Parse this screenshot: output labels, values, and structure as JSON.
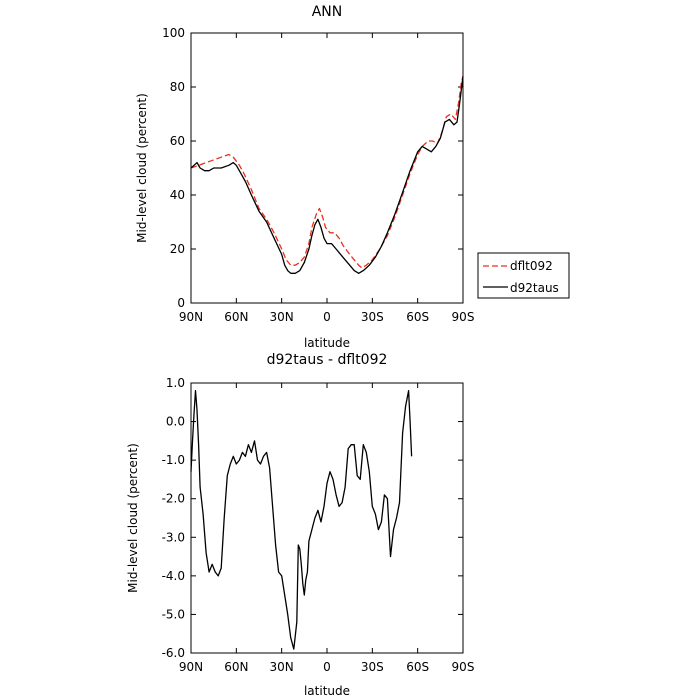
{
  "chart_data": [
    {
      "type": "line",
      "title": "ANN",
      "xlabel": "latitude",
      "ylabel": "Mid-level cloud (percent)",
      "xlim": [
        90,
        -90
      ],
      "ylim": [
        0,
        100
      ],
      "xticks": [
        90,
        60,
        30,
        0,
        -30,
        -60,
        -90
      ],
      "xtick_labels": [
        "90N",
        "60N",
        "30N",
        "0",
        "30S",
        "60S",
        "90S"
      ],
      "yticks": [
        0,
        20,
        40,
        60,
        80,
        100
      ],
      "ytick_labels": [
        "0",
        "20",
        "40",
        "60",
        "80",
        "100"
      ],
      "grid": false,
      "legend": {
        "position": "right-outside",
        "entries": [
          "dflt092",
          "d92taus"
        ]
      },
      "series": [
        {
          "name": "dflt092",
          "color": "#e8301e",
          "dash": "dashed",
          "points": [
            [
              90,
              50
            ],
            [
              85,
              51
            ],
            [
              80,
              52
            ],
            [
              75,
              53
            ],
            [
              70,
              54
            ],
            [
              65,
              55
            ],
            [
              62,
              54
            ],
            [
              58,
              51
            ],
            [
              55,
              48
            ],
            [
              50,
              42
            ],
            [
              45,
              35
            ],
            [
              40,
              31
            ],
            [
              35,
              26
            ],
            [
              30,
              20
            ],
            [
              27,
              16
            ],
            [
              24,
              14
            ],
            [
              21,
              14
            ],
            [
              18,
              15
            ],
            [
              15,
              17
            ],
            [
              12,
              22
            ],
            [
              10,
              28
            ],
            [
              7,
              33
            ],
            [
              5,
              35
            ],
            [
              3,
              32
            ],
            [
              1,
              28
            ],
            [
              -2,
              26
            ],
            [
              -5,
              26
            ],
            [
              -8,
              24
            ],
            [
              -11,
              21
            ],
            [
              -15,
              18
            ],
            [
              -18,
              16
            ],
            [
              -21,
              14
            ],
            [
              -23,
              13
            ],
            [
              -26,
              14
            ],
            [
              -30,
              16
            ],
            [
              -35,
              20
            ],
            [
              -40,
              25
            ],
            [
              -45,
              32
            ],
            [
              -50,
              40
            ],
            [
              -55,
              48
            ],
            [
              -60,
              55
            ],
            [
              -63,
              58
            ],
            [
              -67,
              60
            ],
            [
              -70,
              60
            ],
            [
              -73,
              59
            ],
            [
              -76,
              63
            ],
            [
              -79,
              69
            ],
            [
              -82,
              70
            ],
            [
              -85,
              68
            ],
            [
              -87,
              74
            ],
            [
              -89,
              82
            ],
            [
              -90,
              84
            ]
          ]
        },
        {
          "name": "d92taus",
          "color": "#000000",
          "dash": "solid",
          "points": [
            [
              90,
              50
            ],
            [
              88,
              51
            ],
            [
              86,
              52
            ],
            [
              84,
              50
            ],
            [
              81,
              49
            ],
            [
              78,
              49
            ],
            [
              75,
              50
            ],
            [
              70,
              50
            ],
            [
              65,
              51
            ],
            [
              62,
              52
            ],
            [
              60,
              51
            ],
            [
              57,
              48
            ],
            [
              54,
              45
            ],
            [
              50,
              40
            ],
            [
              45,
              34
            ],
            [
              40,
              30
            ],
            [
              35,
              24
            ],
            [
              30,
              18
            ],
            [
              28,
              14
            ],
            [
              26,
              12
            ],
            [
              24,
              11
            ],
            [
              21,
              11
            ],
            [
              18,
              12
            ],
            [
              15,
              15
            ],
            [
              12,
              20
            ],
            [
              10,
              25
            ],
            [
              8,
              29
            ],
            [
              6,
              31
            ],
            [
              4,
              28
            ],
            [
              2,
              24
            ],
            [
              0,
              22
            ],
            [
              -3,
              22
            ],
            [
              -6,
              20
            ],
            [
              -9,
              18
            ],
            [
              -12,
              16
            ],
            [
              -15,
              14
            ],
            [
              -18,
              12
            ],
            [
              -21,
              11
            ],
            [
              -24,
              12
            ],
            [
              -28,
              14
            ],
            [
              -32,
              17
            ],
            [
              -36,
              21
            ],
            [
              -40,
              26
            ],
            [
              -45,
              33
            ],
            [
              -50,
              41
            ],
            [
              -55,
              49
            ],
            [
              -60,
              56
            ],
            [
              -63,
              58
            ],
            [
              -66,
              57
            ],
            [
              -69,
              56
            ],
            [
              -72,
              58
            ],
            [
              -75,
              61
            ],
            [
              -78,
              67
            ],
            [
              -81,
              68
            ],
            [
              -84,
              66
            ],
            [
              -86,
              67
            ],
            [
              -88,
              75
            ],
            [
              -90,
              84
            ]
          ]
        }
      ]
    },
    {
      "type": "line",
      "title": "d92taus - dflt092",
      "xlabel": "latitude",
      "ylabel": "Mid-level cloud (percent)",
      "xlim": [
        90,
        -90
      ],
      "ylim": [
        -6.0,
        1.0
      ],
      "xticks": [
        90,
        60,
        30,
        0,
        -30,
        -60,
        -90
      ],
      "xtick_labels": [
        "90N",
        "60N",
        "30N",
        "0",
        "30S",
        "60S",
        "90S"
      ],
      "yticks": [
        1.0,
        0.0,
        -1.0,
        -2.0,
        -3.0,
        -4.0,
        -5.0,
        -6.0
      ],
      "ytick_labels": [
        "1.0",
        "0.0",
        "-1.0",
        "-2.0",
        "-3.0",
        "-4.0",
        "-5.0",
        "-6.0"
      ],
      "grid": false,
      "series": [
        {
          "color": "#000000",
          "dash": "solid",
          "points": [
            [
              90,
              -1.3
            ],
            [
              89,
              -0.5
            ],
            [
              88,
              0.2
            ],
            [
              87,
              0.8
            ],
            [
              86,
              0.3
            ],
            [
              85,
              -0.6
            ],
            [
              84,
              -1.7
            ],
            [
              82,
              -2.4
            ],
            [
              80,
              -3.4
            ],
            [
              78,
              -3.9
            ],
            [
              76,
              -3.7
            ],
            [
              74,
              -3.9
            ],
            [
              72,
              -4.0
            ],
            [
              70,
              -3.8
            ],
            [
              68,
              -2.5
            ],
            [
              66,
              -1.4
            ],
            [
              64,
              -1.1
            ],
            [
              62,
              -0.9
            ],
            [
              60,
              -1.1
            ],
            [
              58,
              -1.0
            ],
            [
              56,
              -0.8
            ],
            [
              54,
              -0.9
            ],
            [
              52,
              -0.6
            ],
            [
              50,
              -0.8
            ],
            [
              48,
              -0.5
            ],
            [
              46,
              -1.0
            ],
            [
              44,
              -1.1
            ],
            [
              42,
              -0.9
            ],
            [
              40,
              -0.8
            ],
            [
              38,
              -1.2
            ],
            [
              36,
              -2.2
            ],
            [
              34,
              -3.2
            ],
            [
              32,
              -3.9
            ],
            [
              30,
              -4.0
            ],
            [
              28,
              -4.5
            ],
            [
              26,
              -5.0
            ],
            [
              24,
              -5.6
            ],
            [
              22,
              -5.9
            ],
            [
              20,
              -5.2
            ],
            [
              19,
              -3.2
            ],
            [
              18,
              -3.3
            ],
            [
              17,
              -3.7
            ],
            [
              16,
              -4.2
            ],
            [
              15,
              -4.5
            ],
            [
              14,
              -4.1
            ],
            [
              13,
              -3.9
            ],
            [
              12,
              -3.1
            ],
            [
              10,
              -2.8
            ],
            [
              8,
              -2.5
            ],
            [
              6,
              -2.3
            ],
            [
              4,
              -2.6
            ],
            [
              2,
              -2.2
            ],
            [
              0,
              -1.6
            ],
            [
              -2,
              -1.3
            ],
            [
              -4,
              -1.5
            ],
            [
              -6,
              -1.9
            ],
            [
              -8,
              -2.2
            ],
            [
              -10,
              -2.1
            ],
            [
              -12,
              -1.7
            ],
            [
              -14,
              -0.7
            ],
            [
              -16,
              -0.6
            ],
            [
              -18,
              -0.6
            ],
            [
              -20,
              -1.4
            ],
            [
              -22,
              -1.5
            ],
            [
              -24,
              -0.6
            ],
            [
              -26,
              -0.8
            ],
            [
              -28,
              -1.3
            ],
            [
              -30,
              -2.2
            ],
            [
              -32,
              -2.4
            ],
            [
              -34,
              -2.8
            ],
            [
              -36,
              -2.6
            ],
            [
              -38,
              -1.9
            ],
            [
              -40,
              -2.0
            ],
            [
              -42,
              -3.5
            ],
            [
              -44,
              -2.8
            ],
            [
              -46,
              -2.5
            ],
            [
              -48,
              -2.1
            ],
            [
              -50,
              -0.3
            ],
            [
              -52,
              0.4
            ],
            [
              -54,
              0.8
            ],
            [
              -55,
              0.0
            ],
            [
              -56,
              -0.9
            ]
          ]
        }
      ]
    }
  ]
}
